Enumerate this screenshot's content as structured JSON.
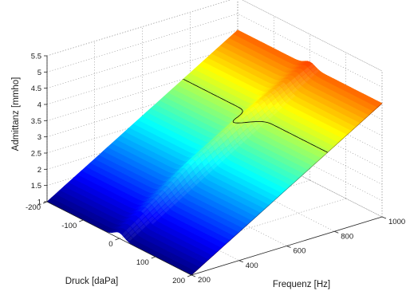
{
  "chart_data": {
    "type": "surface",
    "xlabel": "Frequenz [Hz]",
    "ylabel": "Druck [daPa]",
    "zlabel": "Admittanz [mmho]",
    "xlim": [
      200,
      1000
    ],
    "ylim": [
      -200,
      200
    ],
    "zlim": [
      1,
      5.5
    ],
    "x_ticks": [
      200,
      400,
      600,
      800,
      1000
    ],
    "y_ticks": [
      -200,
      -100,
      0,
      100,
      200
    ],
    "z_ticks": [
      1,
      1.5,
      2,
      2.5,
      3,
      3.5,
      4,
      4.5,
      5,
      5.5
    ],
    "colormap": "jet",
    "grid": true,
    "contour_levels": [
      3.5
    ],
    "surface_model": {
      "baseline_admittance": {
        "x": [
          200,
          1000
        ],
        "z": [
          1.0,
          4.5
        ]
      },
      "peak_pressure_daPa": 0,
      "peak_width_daPa": 20,
      "peak_height_mmho": {
        "x": [
          200,
          400,
          500,
          700,
          1000
        ],
        "z": [
          0.18,
          0.3,
          0.4,
          0.4,
          0.15
        ]
      }
    }
  }
}
